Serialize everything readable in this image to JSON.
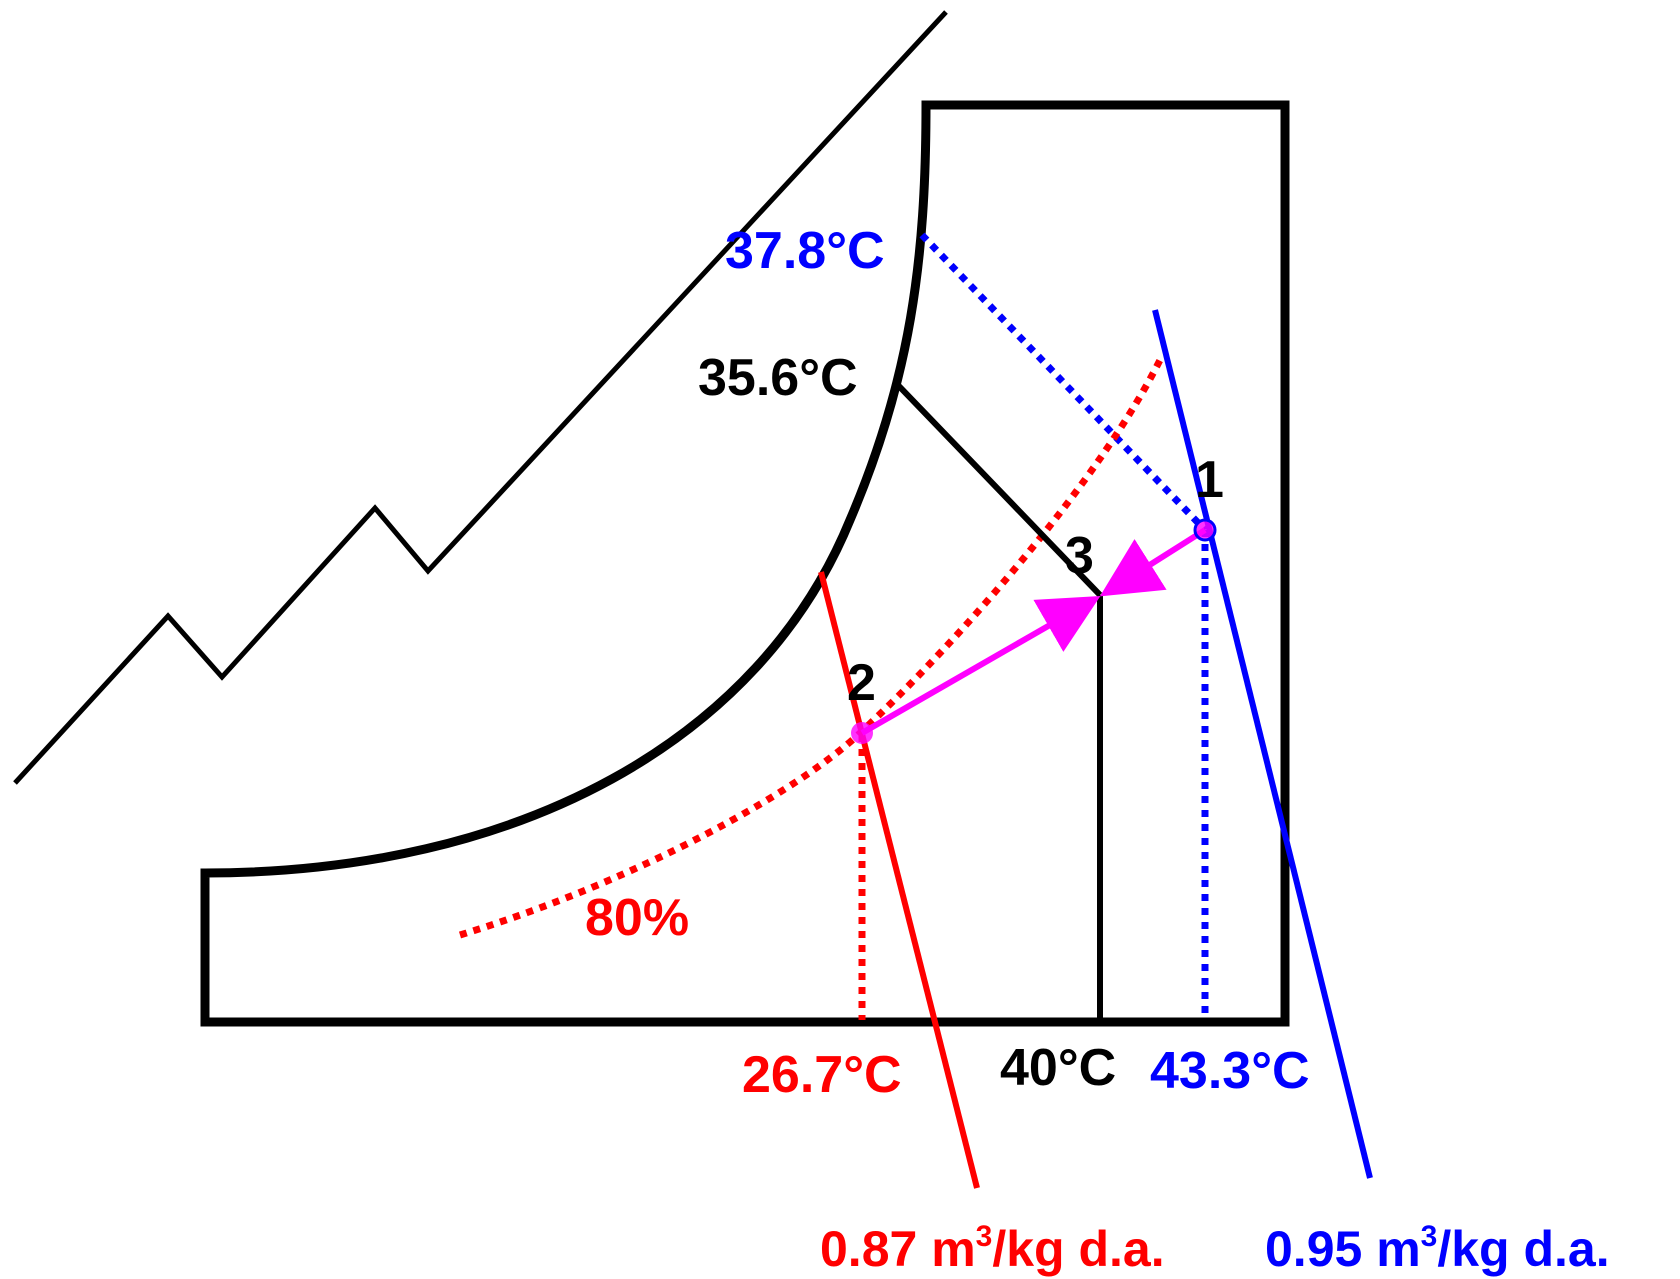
{
  "colors": {
    "black": "#000000",
    "red": "#ff0000",
    "blue": "#0000ff",
    "magenta": "#ff00ff"
  },
  "labels": {
    "t_378": "37.8°C",
    "t_356": "35.6°C",
    "rh_80": "80%",
    "t_267": "26.7°C",
    "t_40": "40°C",
    "t_433": "43.3°C",
    "point_1": "1",
    "point_2": "2",
    "point_3": "3",
    "vol_087_num": "0.87 m",
    "vol_087_sup": "3",
    "vol_087_unit": "/kg d.a.",
    "vol_095_num": "0.95 m",
    "vol_095_sup": "3",
    "vol_095_unit": "/kg d.a."
  }
}
